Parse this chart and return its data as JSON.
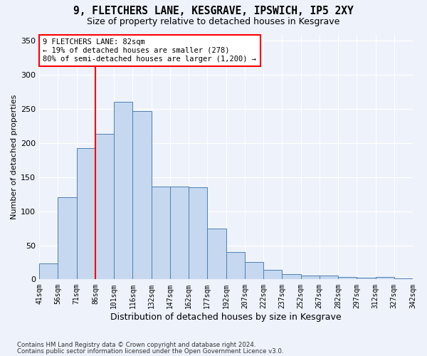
{
  "title1": "9, FLETCHERS LANE, KESGRAVE, IPSWICH, IP5 2XY",
  "title2": "Size of property relative to detached houses in Kesgrave",
  "xlabel": "Distribution of detached houses by size in Kesgrave",
  "ylabel": "Number of detached properties",
  "categories": [
    "41sqm",
    "56sqm",
    "71sqm",
    "86sqm",
    "101sqm",
    "116sqm",
    "132sqm",
    "147sqm",
    "162sqm",
    "177sqm",
    "192sqm",
    "207sqm",
    "222sqm",
    "237sqm",
    "252sqm",
    "267sqm",
    "282sqm",
    "297sqm",
    "312sqm",
    "327sqm",
    "342sqm"
  ],
  "values": [
    23,
    120,
    192,
    213,
    260,
    247,
    136,
    136,
    135,
    75,
    40,
    25,
    14,
    8,
    6,
    6,
    4,
    3,
    4,
    2
  ],
  "bar_color": "#c5d8f0",
  "bar_edge_color": "#4f80b0",
  "vline_color": "red",
  "vline_x": 3.0,
  "annotation_line1": "9 FLETCHERS LANE: 82sqm",
  "annotation_line2": "← 19% of detached houses are smaller (278)",
  "annotation_line3": "80% of semi-detached houses are larger (1,200) →",
  "footer1": "Contains HM Land Registry data © Crown copyright and database right 2024.",
  "footer2": "Contains public sector information licensed under the Open Government Licence v3.0.",
  "ylim": [
    0,
    360
  ],
  "yticks": [
    0,
    50,
    100,
    150,
    200,
    250,
    300,
    350
  ],
  "background_color": "#edf2fb",
  "grid_color": "#ffffff",
  "title1_fontsize": 10.5,
  "title2_fontsize": 9,
  "ylabel_fontsize": 8,
  "xlabel_fontsize": 9
}
